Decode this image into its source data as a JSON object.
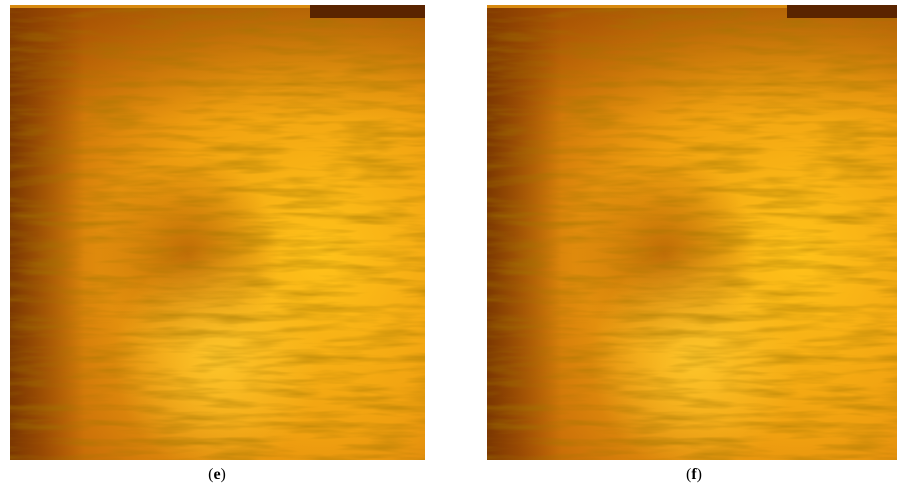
{
  "panels": [
    {
      "open": "(",
      "letter": "e",
      "close": ")"
    },
    {
      "open": "(",
      "letter": "f",
      "close": ")"
    }
  ]
}
